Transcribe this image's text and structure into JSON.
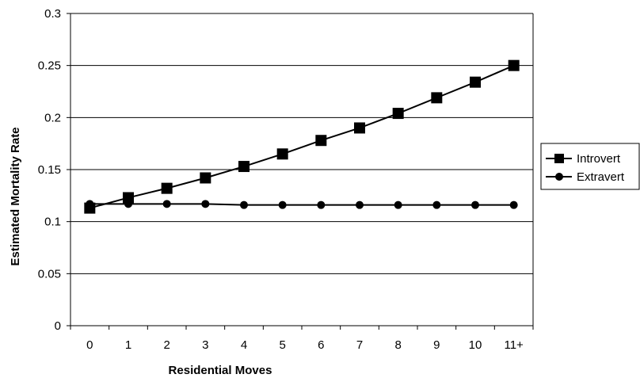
{
  "chart_data": {
    "type": "line",
    "title": "",
    "xlabel": "Residential Moves",
    "ylabel": "Estimated Mortality Rate",
    "categories": [
      "0",
      "1",
      "2",
      "3",
      "4",
      "5",
      "6",
      "7",
      "8",
      "9",
      "10",
      "11+"
    ],
    "y_ticks": [
      "0",
      "0.05",
      "0.1",
      "0.15",
      "0.2",
      "0.25",
      "0.3"
    ],
    "ylim": [
      0,
      0.3
    ],
    "grid": "horizontal",
    "legend_position": "right",
    "series": [
      {
        "name": "Introvert",
        "marker": "square",
        "color": "#000000",
        "values": [
          0.113,
          0.123,
          0.132,
          0.142,
          0.153,
          0.165,
          0.178,
          0.19,
          0.204,
          0.219,
          0.234,
          0.25
        ]
      },
      {
        "name": "Extravert",
        "marker": "circle",
        "color": "#000000",
        "values": [
          0.117,
          0.117,
          0.117,
          0.117,
          0.116,
          0.116,
          0.116,
          0.116,
          0.116,
          0.116,
          0.116,
          0.116
        ]
      }
    ]
  }
}
